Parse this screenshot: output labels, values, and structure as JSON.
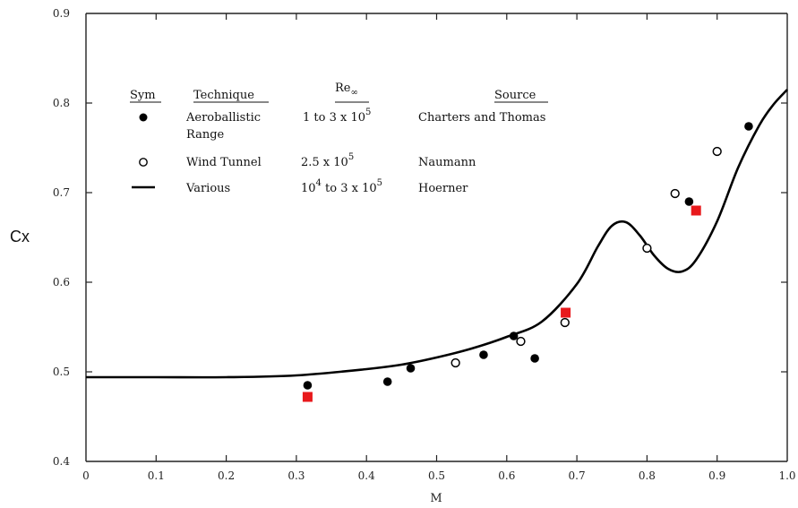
{
  "chart_data": {
    "type": "scatter",
    "xlabel": "M",
    "ylabel": "Cx",
    "xlim": [
      0,
      1.0
    ],
    "ylim": [
      0.4,
      0.9
    ],
    "x_ticks": [
      "0",
      "0.1",
      "0.2",
      "0.3",
      "0.4",
      "0.5",
      "0.6",
      "0.7",
      "0.8",
      "0.9",
      "1.0"
    ],
    "y_ticks": [
      "0.4",
      "0.5",
      "0.6",
      "0.7",
      "0.8",
      "0.9"
    ],
    "grid": false,
    "legend": {
      "headers": {
        "sym": "Sym",
        "technique": "Technique",
        "re": "Re",
        "re_sub": "∞",
        "source": "Source"
      },
      "rows": [
        {
          "symbol": "filled-circle",
          "technique": [
            "Aeroballistic",
            "Range"
          ],
          "re_base": "1 to 3 x 10",
          "re_exp": "5",
          "source": "Charters and Thomas"
        },
        {
          "symbol": "open-circle",
          "technique": [
            "Wind Tunnel"
          ],
          "re_base": "2.5 x 10",
          "re_exp": "5",
          "source": "Naumann"
        },
        {
          "symbol": "line",
          "technique": [
            "Various"
          ],
          "re_pre": "10",
          "re_pre_exp": "4",
          "re_base": " to 3 x 10",
          "re_exp": "5",
          "source": "Hoerner"
        }
      ]
    },
    "series": [
      {
        "name": "Charters and Thomas",
        "marker": "filled-circle",
        "color": "#000000",
        "points": [
          [
            0.316,
            0.485
          ],
          [
            0.43,
            0.489
          ],
          [
            0.463,
            0.504
          ],
          [
            0.567,
            0.519
          ],
          [
            0.61,
            0.54
          ],
          [
            0.64,
            0.515
          ],
          [
            0.86,
            0.69
          ],
          [
            0.945,
            0.774
          ]
        ]
      },
      {
        "name": "Naumann",
        "marker": "open-circle",
        "color": "#000000",
        "points": [
          [
            0.527,
            0.51
          ],
          [
            0.62,
            0.534
          ],
          [
            0.683,
            0.555
          ],
          [
            0.8,
            0.638
          ],
          [
            0.84,
            0.699
          ],
          [
            0.9,
            0.746
          ]
        ]
      },
      {
        "name": "Hoerner",
        "marker": "line",
        "color": "#000000",
        "points": [
          [
            0.0,
            0.494
          ],
          [
            0.1,
            0.494
          ],
          [
            0.2,
            0.494
          ],
          [
            0.3,
            0.496
          ],
          [
            0.4,
            0.503
          ],
          [
            0.45,
            0.508
          ],
          [
            0.5,
            0.516
          ],
          [
            0.55,
            0.526
          ],
          [
            0.6,
            0.539
          ],
          [
            0.65,
            0.556
          ],
          [
            0.7,
            0.598
          ],
          [
            0.73,
            0.64
          ],
          [
            0.75,
            0.663
          ],
          [
            0.77,
            0.667
          ],
          [
            0.79,
            0.652
          ],
          [
            0.81,
            0.63
          ],
          [
            0.83,
            0.615
          ],
          [
            0.85,
            0.612
          ],
          [
            0.87,
            0.625
          ],
          [
            0.9,
            0.668
          ],
          [
            0.93,
            0.728
          ],
          [
            0.96,
            0.775
          ],
          [
            0.98,
            0.798
          ],
          [
            1.0,
            0.815
          ]
        ]
      },
      {
        "name": "",
        "marker": "red-square",
        "color": "#e8191c",
        "points": [
          [
            0.316,
            0.472
          ],
          [
            0.684,
            0.566
          ],
          [
            0.87,
            0.68
          ]
        ]
      }
    ]
  }
}
